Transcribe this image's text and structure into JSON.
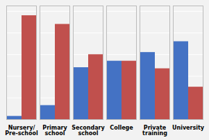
{
  "chart_data": {
    "type": "bar",
    "categories": [
      "Nursery/\nPre-school",
      "Primary\nschool",
      "Secondary\nschool",
      "College",
      "Private\ntraining",
      "University"
    ],
    "series": [
      {
        "color": "#4472c4",
        "values": [
          3,
          13,
          48,
          54,
          62,
          72
        ]
      },
      {
        "color": "#c0504d",
        "values": [
          96,
          88,
          60,
          54,
          47,
          30
        ]
      }
    ],
    "ylim": [
      0,
      105
    ],
    "yticks": [
      0,
      20,
      40,
      60,
      80,
      100
    ],
    "grid": true,
    "tick_labels": "x"
  }
}
